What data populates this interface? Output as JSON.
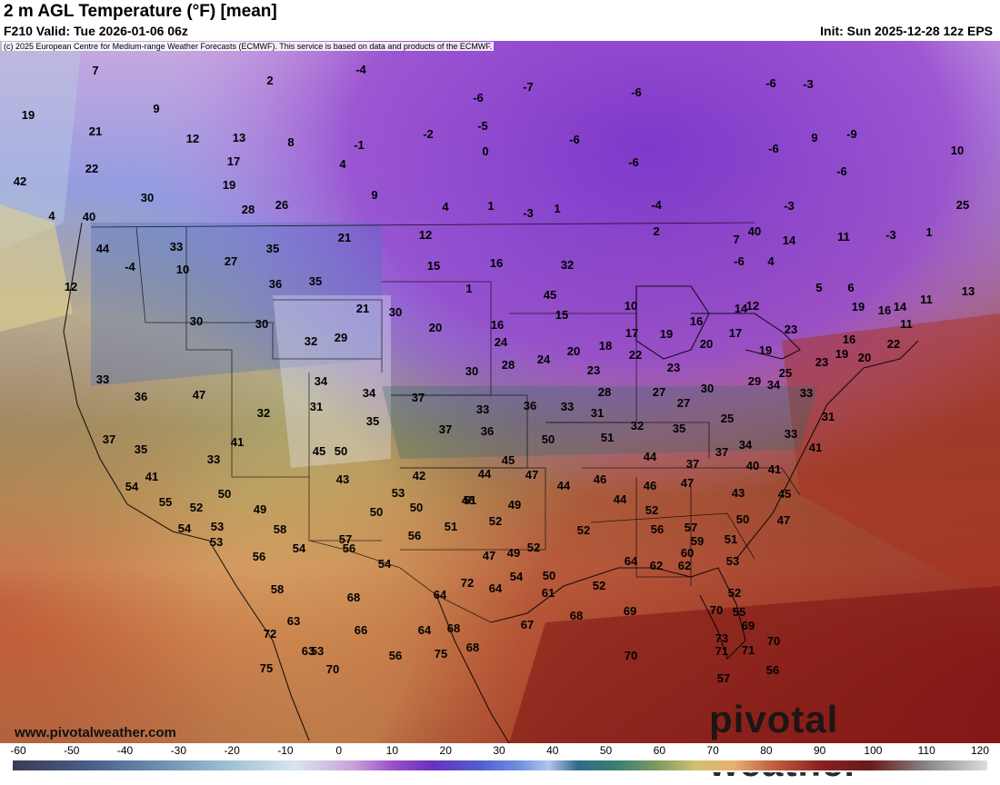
{
  "header": {
    "title": "2 m AGL Temperature (°F) [mean]",
    "valid": "F210 Valid: Tue 2026-01-06 06z",
    "init": "Init: Sun 2025-12-28 12z EPS",
    "copyright": "(c) 2025 European Centre for Medium-range Weather Forecasts (ECMWF). This service is based on data and products of the ECMWF."
  },
  "footer": {
    "website": "www.pivotalweather.com",
    "brand": "pivotal weather"
  },
  "legend": {
    "ticks": [
      "-60",
      "-50",
      "-40",
      "-30",
      "-20",
      "-10",
      "0",
      "10",
      "20",
      "30",
      "40",
      "50",
      "60",
      "70",
      "80",
      "90",
      "100",
      "110",
      "120"
    ]
  },
  "colors": {
    "cold_purple": "#7a2bd0",
    "cool_blue": "#4060c8",
    "mild_green": "#3a7a6a",
    "warm_tan": "#e0c080",
    "hot_red": "#8a1a1a"
  },
  "map_labels": [
    "7",
    "2",
    "-4",
    "-7",
    "-6",
    "-6",
    "19",
    "9",
    "-2",
    "-6",
    "-3",
    "-5",
    "21",
    "12",
    "13",
    "8",
    "-1",
    "0",
    "-6",
    "9",
    "-9",
    "22",
    "17",
    "4",
    "-6",
    "-6",
    "-6",
    "10",
    "19",
    "42",
    "30",
    "28",
    "26",
    "9",
    "4",
    "1",
    "1",
    "-3",
    "-4",
    "-3",
    "4",
    "40",
    "44",
    "33",
    "27",
    "35",
    "21",
    "12",
    "16",
    "7",
    "2",
    "-6",
    "1",
    "-3",
    "-4",
    "10",
    "36",
    "35",
    "25",
    "32",
    "4",
    "12",
    "1",
    "45",
    "15",
    "10",
    "12",
    "11",
    "13",
    "11",
    "14",
    "40",
    "30",
    "30",
    "21",
    "32",
    "30",
    "20",
    "16",
    "15",
    "14",
    "5",
    "6",
    "16",
    "19",
    "11",
    "14",
    "29",
    "24",
    "24",
    "20",
    "18",
    "17",
    "19",
    "16",
    "20",
    "17",
    "19",
    "23",
    "16",
    "22",
    "34",
    "32",
    "30",
    "28",
    "23",
    "22",
    "23",
    "25",
    "23",
    "19",
    "20",
    "29",
    "47",
    "33",
    "36",
    "28",
    "27",
    "30",
    "27",
    "25",
    "33",
    "31",
    "34",
    "35",
    "37",
    "36",
    "33",
    "31",
    "32",
    "35",
    "34",
    "33",
    "31",
    "34",
    "33",
    "37",
    "36",
    "50",
    "51",
    "44",
    "37",
    "37",
    "40",
    "41",
    "37",
    "35",
    "41",
    "50",
    "45",
    "33",
    "41",
    "43",
    "42",
    "45",
    "44",
    "47",
    "44",
    "46",
    "44",
    "46",
    "47",
    "43",
    "41",
    "45",
    "53",
    "54",
    "52",
    "55",
    "54",
    "53",
    "49",
    "50",
    "48",
    "49",
    "50",
    "51",
    "52",
    "50",
    "47",
    "49",
    "56",
    "57",
    "51",
    "50",
    "53",
    "53",
    "56",
    "58",
    "54",
    "57",
    "56",
    "52",
    "51",
    "52",
    "52",
    "47",
    "50",
    "62",
    "59",
    "60",
    "56",
    "54",
    "54",
    "61",
    "52",
    "64",
    "62",
    "55",
    "58",
    "68",
    "63",
    "72",
    "64",
    "52",
    "70",
    "69",
    "73",
    "71",
    "70",
    "66",
    "64",
    "68",
    "67",
    "68",
    "69",
    "63",
    "64",
    "72",
    "70",
    "75",
    "68",
    "71",
    "53",
    "56",
    "57",
    "75",
    "56",
    "70"
  ]
}
